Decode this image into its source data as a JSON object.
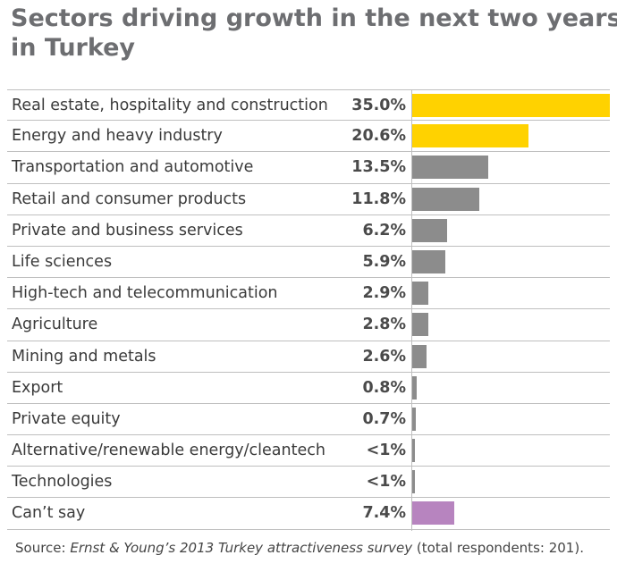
{
  "chart_data": {
    "type": "bar",
    "title_line1": "Sectors driving growth in the next two years",
    "title_line2": "in Turkey",
    "categories": [
      "Real estate, hospitality and construction",
      "Energy and heavy industry",
      "Transportation and  automotive",
      "Retail and consumer products",
      "Private and business services",
      "Life sciences",
      "High-tech and telecommunication",
      "Agriculture",
      "Mining and metals",
      "Export",
      "Private equity",
      "Alternative/renewable energy/cleantech",
      "Technologies",
      "Can’t say"
    ],
    "values": [
      35.0,
      20.6,
      13.5,
      11.8,
      6.2,
      5.9,
      2.9,
      2.8,
      2.6,
      0.8,
      0.7,
      0.5,
      0.5,
      7.4
    ],
    "value_labels": [
      "35.0%",
      "20.6%",
      "13.5%",
      "11.8%",
      "6.2%",
      "5.9%",
      "2.9%",
      "2.8%",
      "2.6%",
      "0.8%",
      "0.7%",
      "<1%",
      "<1%",
      "7.4%"
    ],
    "bar_colors": [
      "#ffd200",
      "#ffd200",
      "#8c8c8c",
      "#8c8c8c",
      "#8c8c8c",
      "#8c8c8c",
      "#8c8c8c",
      "#8c8c8c",
      "#8c8c8c",
      "#8c8c8c",
      "#8c8c8c",
      "#8c8c8c",
      "#8c8c8c",
      "#b784bf"
    ],
    "xlim": [
      0,
      35
    ],
    "xlabel": "",
    "ylabel": ""
  },
  "source": {
    "prefix": "Source: ",
    "survey": "Ernst & Young’s 2013 Turkey attractiveness survey",
    "suffix": " (total respondents: 201)."
  }
}
